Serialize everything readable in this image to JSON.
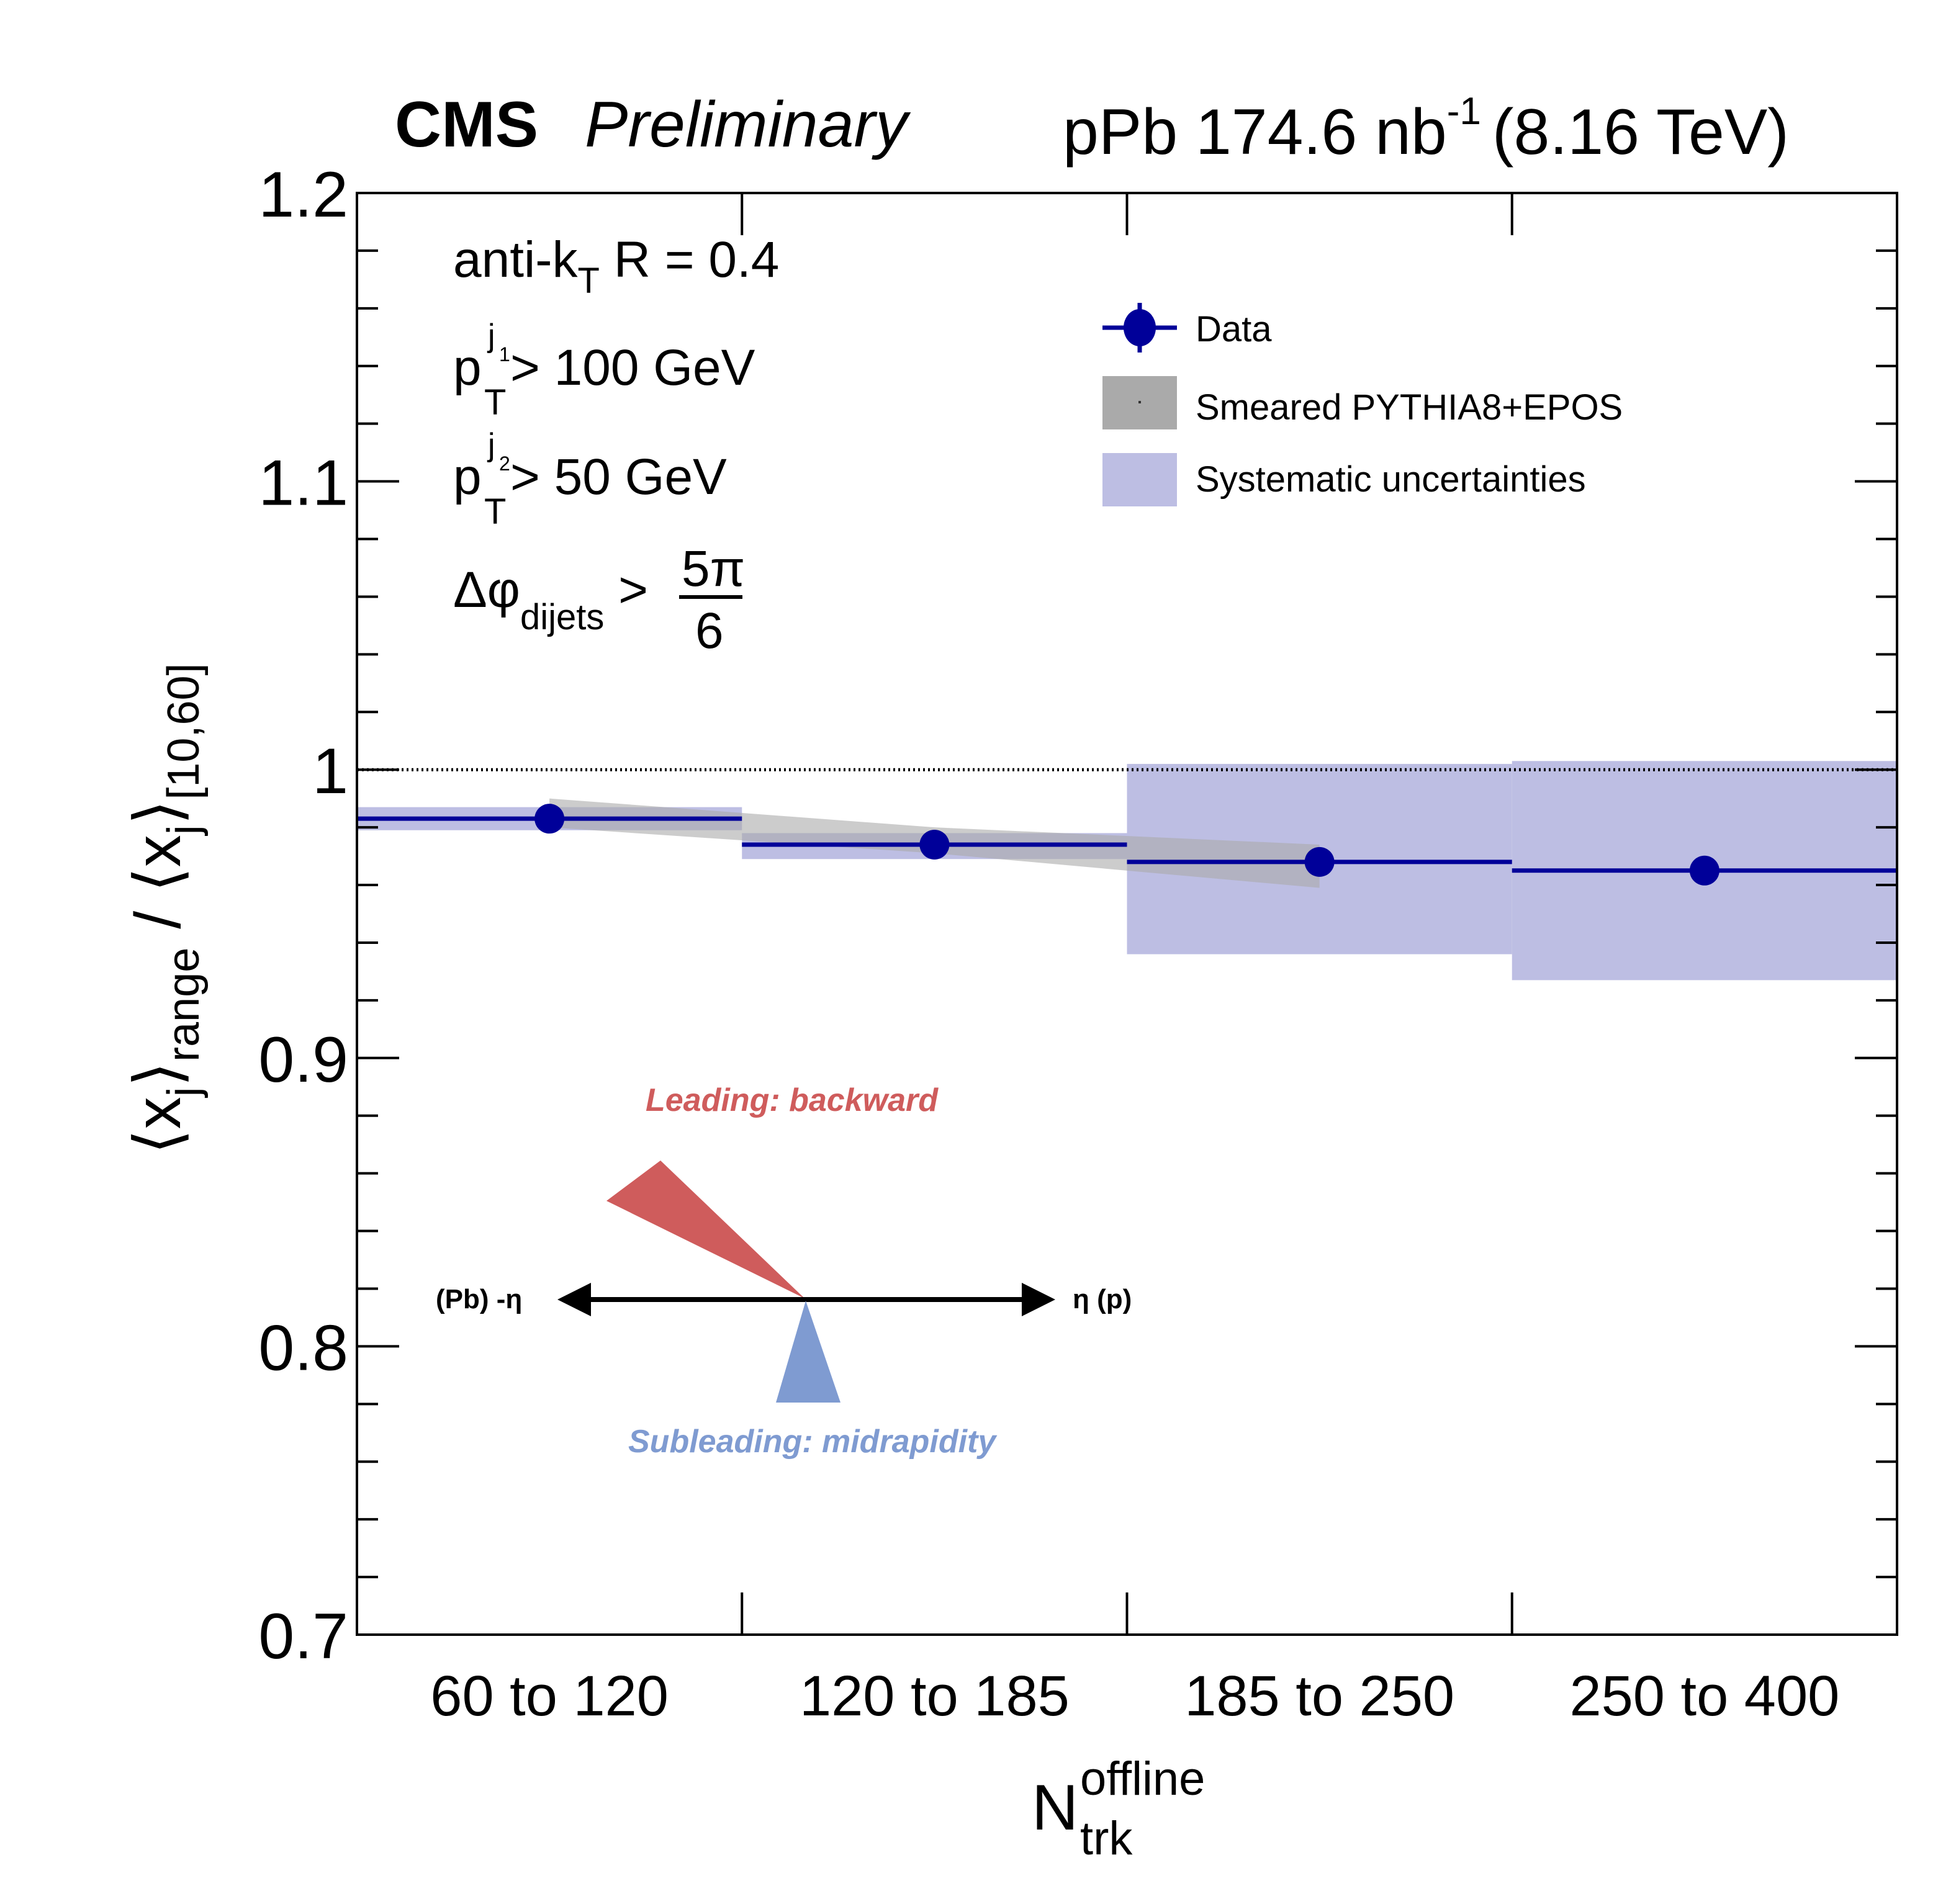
{
  "chart_data": {
    "type": "scatter",
    "title": "CMS Preliminary",
    "header": {
      "experiment": "CMS",
      "status": "Preliminary",
      "lumi_prefix": "pPb 174.6 nb",
      "lumi_exp": "-1",
      "energy": "(8.16 TeV)"
    },
    "xlabel": {
      "main": "N",
      "sup": "offline",
      "sub": "trk"
    },
    "ylabel": "⟨x_j⟩_range / ⟨x_j⟩_[10,60]",
    "ylabel_parts": {
      "num_sub": "j",
      "num_subsub": "range",
      "slash": "/",
      "den_sub": "j",
      "den_subsub": "[10,60]"
    },
    "categories": [
      "60 to 120",
      "120 to 185",
      "185 to 250",
      "250 to 400"
    ],
    "ylim": [
      0.7,
      1.2
    ],
    "yticks": [
      0.7,
      0.8,
      0.9,
      1,
      1.1,
      1.2
    ],
    "ytick_labels": [
      "0.7",
      "0.8",
      "0.9",
      "1",
      "1.1",
      "1.2"
    ],
    "reference_line": 1.0,
    "series": [
      {
        "name": "Data",
        "color": "#000099",
        "values": [
          0.983,
          0.974,
          0.968,
          0.965
        ],
        "syst_low": [
          0.979,
          0.969,
          0.936,
          0.927
        ],
        "syst_high": [
          0.987,
          0.978,
          1.002,
          1.003
        ]
      },
      {
        "name": "Smeared PYTHIA8+EPOS",
        "color": "#aaaaaa",
        "band_x_centers": [
          1,
          2,
          3
        ],
        "band_low": [
          0.98,
          0.971,
          0.959
        ],
        "band_high": [
          0.99,
          0.98,
          0.974
        ]
      }
    ],
    "legend": {
      "position": "top-right",
      "entries": [
        "Data",
        "Smeared PYTHIA8+EPOS",
        "Systematic uncertainties"
      ],
      "syst_color": "#bdbee3"
    },
    "annotations": {
      "lines": [
        {
          "main": "anti-k",
          "sub": "T",
          "rest": " R = 0.4"
        },
        {
          "main": "p",
          "sup": "j",
          "supsub": "1",
          "sub": "T",
          "rest": " > 100 GeV"
        },
        {
          "main": "p",
          "sup": "j",
          "supsub": "2",
          "sub": "T",
          "rest": " > 50 GeV"
        },
        {
          "main": "Δφ",
          "sub": "dijets",
          "rest": " >",
          "frac_num": "5π",
          "frac_den": "6"
        }
      ],
      "leading_label": "Leading: backward",
      "leading_color": "#cf5c5c",
      "subleading_label": "Subleading: midrapidity",
      "subleading_color": "#7f9bd1",
      "left_arrow_label": "(Pb) -η",
      "right_arrow_label": "η (p)"
    }
  }
}
